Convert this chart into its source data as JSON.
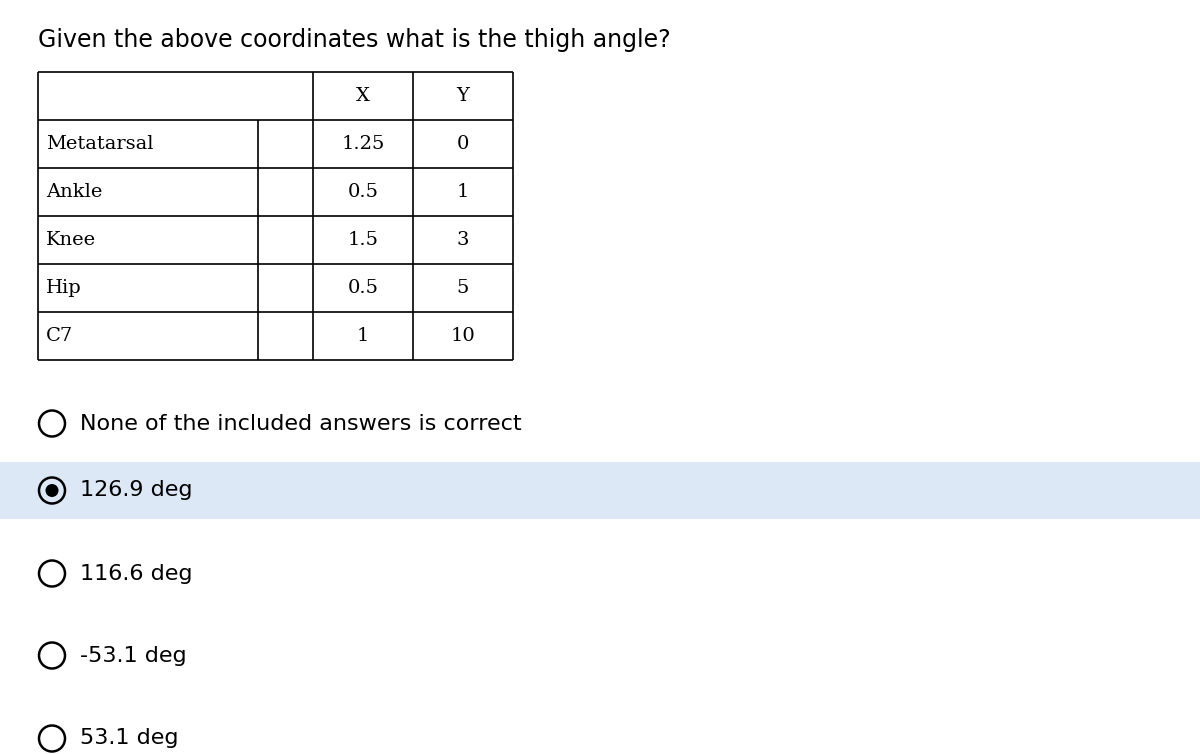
{
  "title": "Given the above coordinates what is the thigh angle?",
  "table_headers": [
    "",
    "X",
    "Y"
  ],
  "table_rows": [
    [
      "Metatarsal",
      "1.25",
      "0"
    ],
    [
      "Ankle",
      "0.5",
      "1"
    ],
    [
      "Knee",
      "1.5",
      "3"
    ],
    [
      "Hip",
      "0.5",
      "5"
    ],
    [
      "C7",
      "1",
      "10"
    ]
  ],
  "options": [
    {
      "text": "None of the included answers is correct",
      "selected": false
    },
    {
      "text": "126.9 deg",
      "selected": true
    },
    {
      "text": "116.6 deg",
      "selected": false
    },
    {
      "text": "-53.1 deg",
      "selected": false
    },
    {
      "text": "53.1 deg",
      "selected": false
    }
  ],
  "selected_bg_color": "#dce8f5",
  "background_color": "#ffffff",
  "title_fontsize": 17,
  "option_fontsize": 16,
  "table_fontsize": 14,
  "fig_width": 12.0,
  "fig_height": 7.54,
  "dpi": 100
}
